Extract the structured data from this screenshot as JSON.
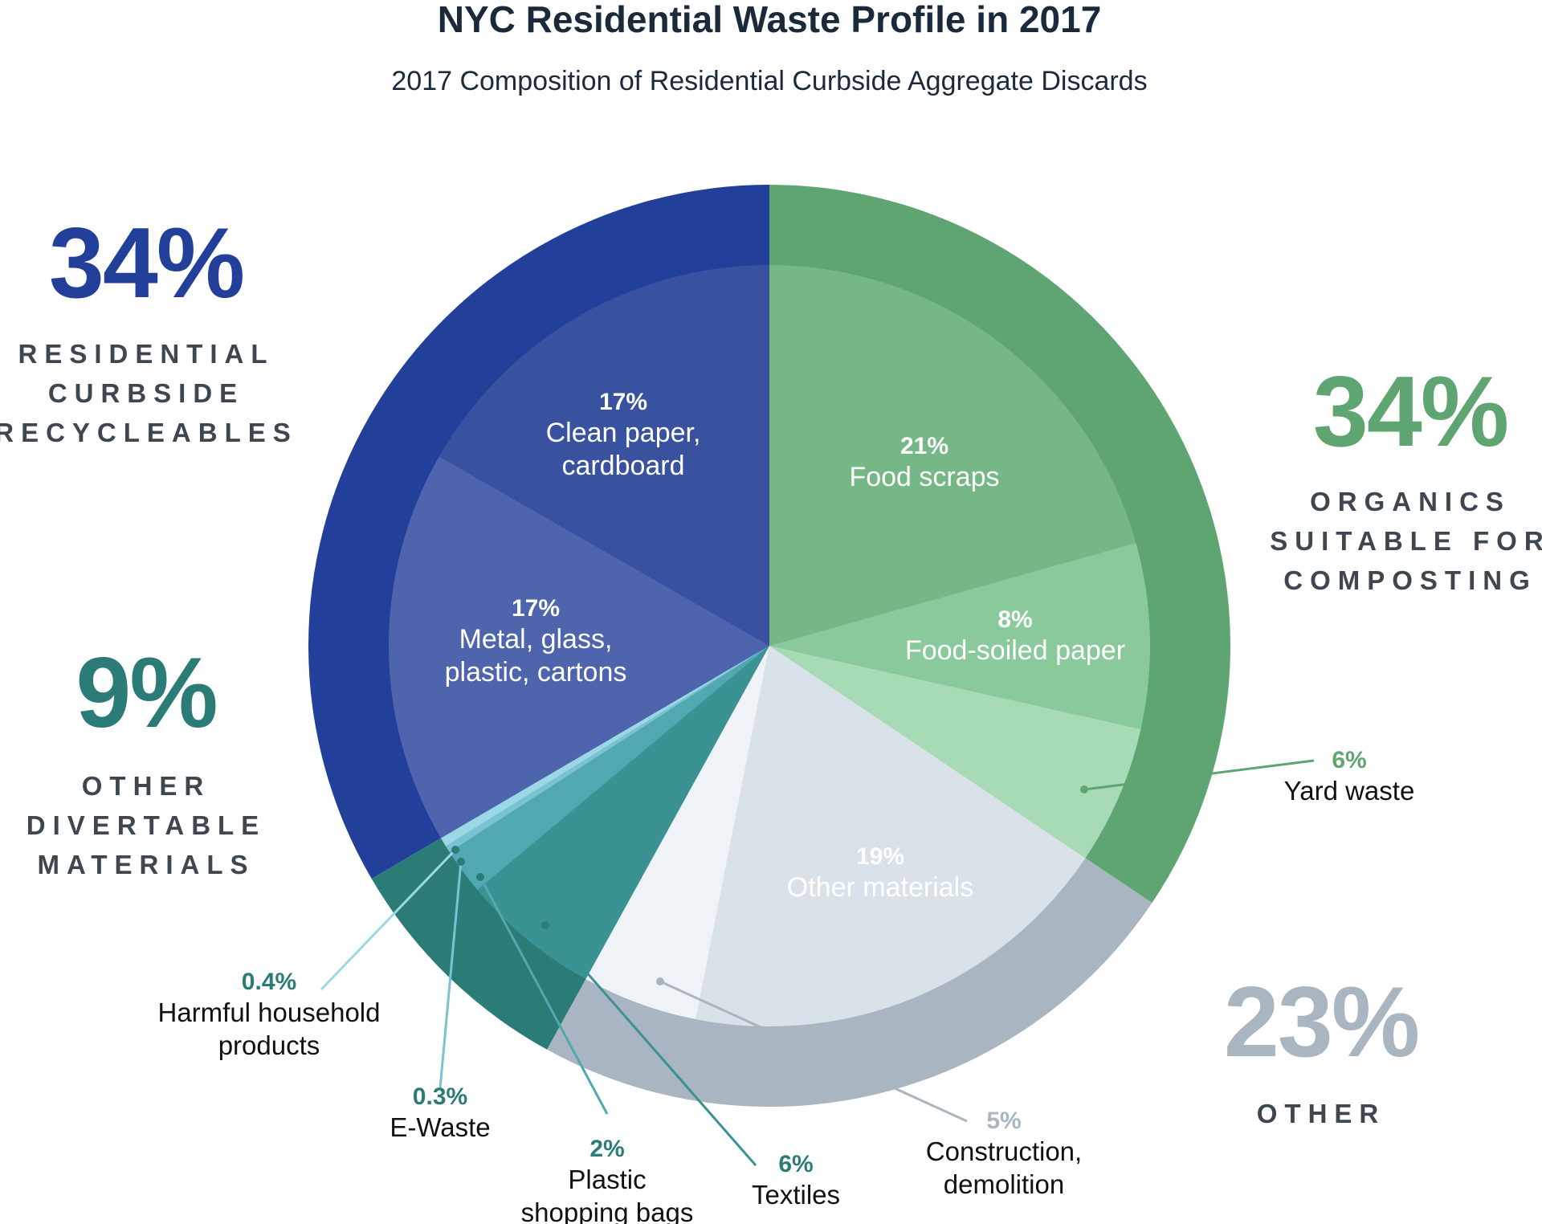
{
  "chart_data": {
    "type": "pie",
    "title": "NYC Residential Waste Profile in 2017",
    "subtitle": "2017 Composition of Residential Curbside Aggregate Discards",
    "groups": [
      {
        "name": "RESIDENTIAL CURBSIDE RECYCLEABLES",
        "lines": [
          "RESIDENTIAL",
          "CURBSIDE",
          "RECYCLEABLES"
        ],
        "value": 34,
        "label": "34%",
        "color": "#22409a"
      },
      {
        "name": "ORGANICS SUITABLE FOR COMPOSTING",
        "lines": [
          "ORGANICS",
          "SUITABLE FOR",
          "COMPOSTING"
        ],
        "value": 34,
        "label": "34%",
        "color": "#5fa572"
      },
      {
        "name": "OTHER",
        "lines": [
          "OTHER"
        ],
        "value": 23,
        "label": "23%",
        "color": "#a9b5c0"
      },
      {
        "name": "OTHER DIVERTABLE MATERIALS",
        "lines": [
          "OTHER",
          "DIVERTABLE",
          "MATERIALS"
        ],
        "value": 9,
        "label": "9%",
        "color": "#2b7c76"
      }
    ],
    "slices": [
      {
        "name": "Food scraps",
        "lines": [
          "Food scraps"
        ],
        "value": 21,
        "label": "21%",
        "group": "ORGANICS SUITABLE FOR COMPOSTING",
        "color": "#75b886"
      },
      {
        "name": "Food-soiled paper",
        "lines": [
          "Food-soiled paper"
        ],
        "value": 8,
        "label": "8%",
        "group": "ORGANICS SUITABLE FOR COMPOSTING",
        "color": "#89c99b"
      },
      {
        "name": "Yard waste",
        "lines": [
          "Yard waste"
        ],
        "value": 6,
        "label": "6%",
        "group": "ORGANICS SUITABLE FOR COMPOSTING",
        "color": "#a7dbb6"
      },
      {
        "name": "Other materials",
        "lines": [
          "Other materials"
        ],
        "value": 19,
        "label": "19%",
        "group": "OTHER",
        "color": "#dae2e9"
      },
      {
        "name": "Construction, demolition",
        "lines": [
          "Construction,",
          "demolition"
        ],
        "value": 5,
        "label": "5%",
        "group": "OTHER",
        "color": "#eff2f7"
      },
      {
        "name": "Textiles",
        "lines": [
          "Textiles"
        ],
        "value": 6,
        "label": "6%",
        "group": "OTHER DIVERTABLE MATERIALS",
        "color": "#3a9292"
      },
      {
        "name": "Plastic shopping bags",
        "lines": [
          "Plastic",
          "shopping bags"
        ],
        "value": 2,
        "label": "2%",
        "group": "OTHER DIVERTABLE MATERIALS",
        "color": "#52a8b0"
      },
      {
        "name": "E-Waste",
        "lines": [
          "E-Waste"
        ],
        "value": 0.3,
        "label": "0.3%",
        "group": "OTHER DIVERTABLE MATERIALS",
        "color": "#79c2d0"
      },
      {
        "name": "Harmful household products",
        "lines": [
          "Harmful household",
          "products"
        ],
        "value": 0.4,
        "label": "0.4%",
        "group": "OTHER DIVERTABLE MATERIALS",
        "color": "#9ad8e6"
      },
      {
        "name": "Metal, glass, plastic, cartons",
        "lines": [
          "Metal, glass,",
          "plastic, cartons"
        ],
        "value": 17,
        "label": "17%",
        "group": "RESIDENTIAL CURBSIDE RECYCLEABLES",
        "color": "#4e64ad"
      },
      {
        "name": "Clean paper, cardboard",
        "lines": [
          "Clean paper,",
          "cardboard"
        ],
        "value": 17,
        "label": "17%",
        "group": "RESIDENTIAL CURBSIDE RECYCLEABLES",
        "color": "#3852a0"
      }
    ],
    "pct_colors": {
      "ORGANICS SUITABLE FOR COMPOSTING": "#5fa572",
      "OTHER": "#a9b5c0",
      "OTHER DIVERTABLE MATERIALS": "#2b7c76"
    },
    "other_materials_text_color": "#a9b5c0"
  }
}
